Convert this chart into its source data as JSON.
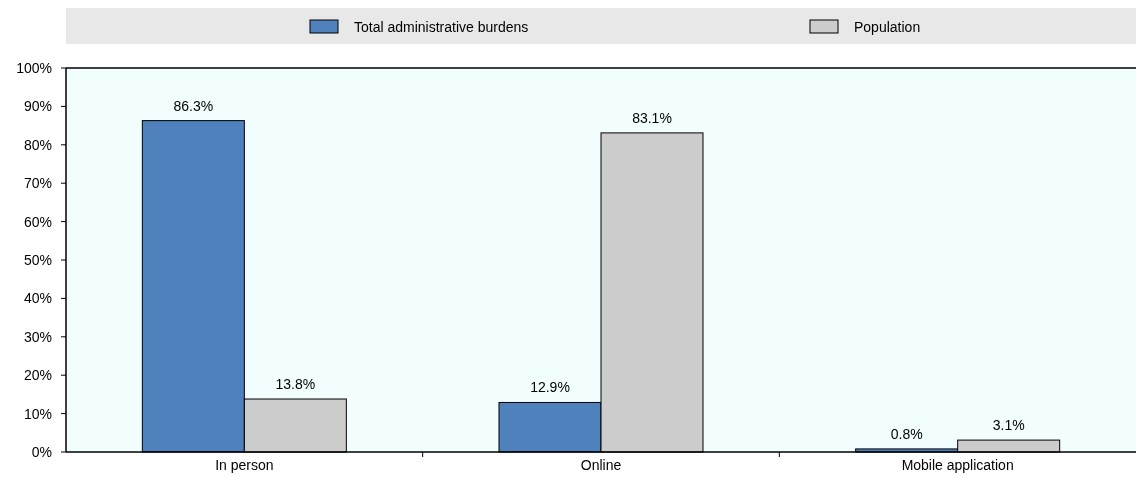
{
  "chart_data": {
    "type": "bar",
    "categories": [
      "In person",
      "Online",
      "Mobile application"
    ],
    "series": [
      {
        "name": "Total administrative burdens",
        "color": "#4f81bd",
        "values": [
          86.3,
          12.9,
          0.8
        ],
        "value_labels": [
          "86.3%",
          "12.9%",
          "0.8%"
        ]
      },
      {
        "name": "Population",
        "color": "#cccccc",
        "values": [
          13.8,
          83.1,
          3.1
        ],
        "value_labels": [
          "13.8%",
          "83.1%",
          "3.1%"
        ]
      }
    ],
    "ylim": [
      0,
      100
    ],
    "yticks": [
      {
        "value": 0,
        "label": "0%"
      },
      {
        "value": 10,
        "label": "10%"
      },
      {
        "value": 20,
        "label": "20%"
      },
      {
        "value": 30,
        "label": "30%"
      },
      {
        "value": 40,
        "label": "40%"
      },
      {
        "value": 50,
        "label": "50%"
      },
      {
        "value": 60,
        "label": "60%"
      },
      {
        "value": 70,
        "label": "70%"
      },
      {
        "value": 80,
        "label": "80%"
      },
      {
        "value": 90,
        "label": "90%"
      },
      {
        "value": 100,
        "label": "100%"
      }
    ],
    "legend": "top",
    "grid": false
  }
}
